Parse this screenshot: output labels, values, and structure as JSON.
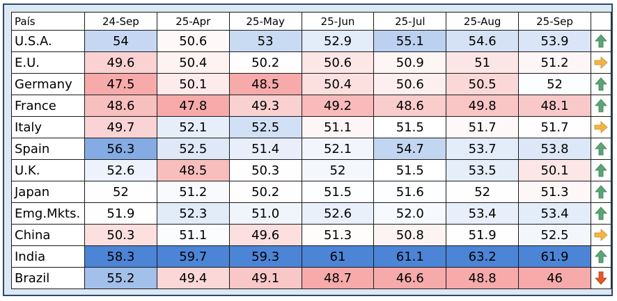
{
  "table": {
    "header": [
      "País",
      "24-Sep",
      "25-Apr",
      "25-May",
      "25-Jun",
      "25-Jul",
      "25-Aug",
      "25-Sep"
    ],
    "rows": [
      [
        "U.S.A.",
        "54",
        "50.6",
        "53",
        "52.9",
        "55.1",
        "54.6",
        "53.9"
      ],
      [
        "E.U.",
        "49.6",
        "50.4",
        "50.2",
        "50.6",
        "50.9",
        "51",
        "51.2"
      ],
      [
        "Germany",
        "47.5",
        "50.1",
        "48.5",
        "50.4",
        "50.6",
        "50.5",
        "52"
      ],
      [
        "France",
        "48.6",
        "47.8",
        "49.3",
        "49.2",
        "48.6",
        "49.8",
        "48.1"
      ],
      [
        "Italy",
        "49.7",
        "52.1",
        "52.5",
        "51.1",
        "51.5",
        "51.7",
        "51.7"
      ],
      [
        "Spain",
        "56.3",
        "52.5",
        "51.4",
        "52.1",
        "54.7",
        "53.7",
        "53.8"
      ],
      [
        "U.K.",
        "52.6",
        "48.5",
        "50.3",
        "52",
        "51.5",
        "53.5",
        "50.1"
      ],
      [
        "Japan",
        "52",
        "51.2",
        "50.2",
        "51.5",
        "51.6",
        "52",
        "51.3"
      ],
      [
        "Emg.Mkts.",
        "51.9",
        "52.3",
        "51.0",
        "52.6",
        "52.0",
        "53.4",
        "53.4"
      ],
      [
        "China",
        "50.3",
        "51.1",
        "49.6",
        "51.3",
        "50.8",
        "51.9",
        "52.5"
      ],
      [
        "India",
        "58.3",
        "59.7",
        "59.3",
        "61",
        "61.1",
        "63.2",
        "61.9"
      ],
      [
        "Brazil",
        "55.2",
        "49.4",
        "49.1",
        "48.7",
        "46.6",
        "48.8",
        "46"
      ]
    ]
  }
}
